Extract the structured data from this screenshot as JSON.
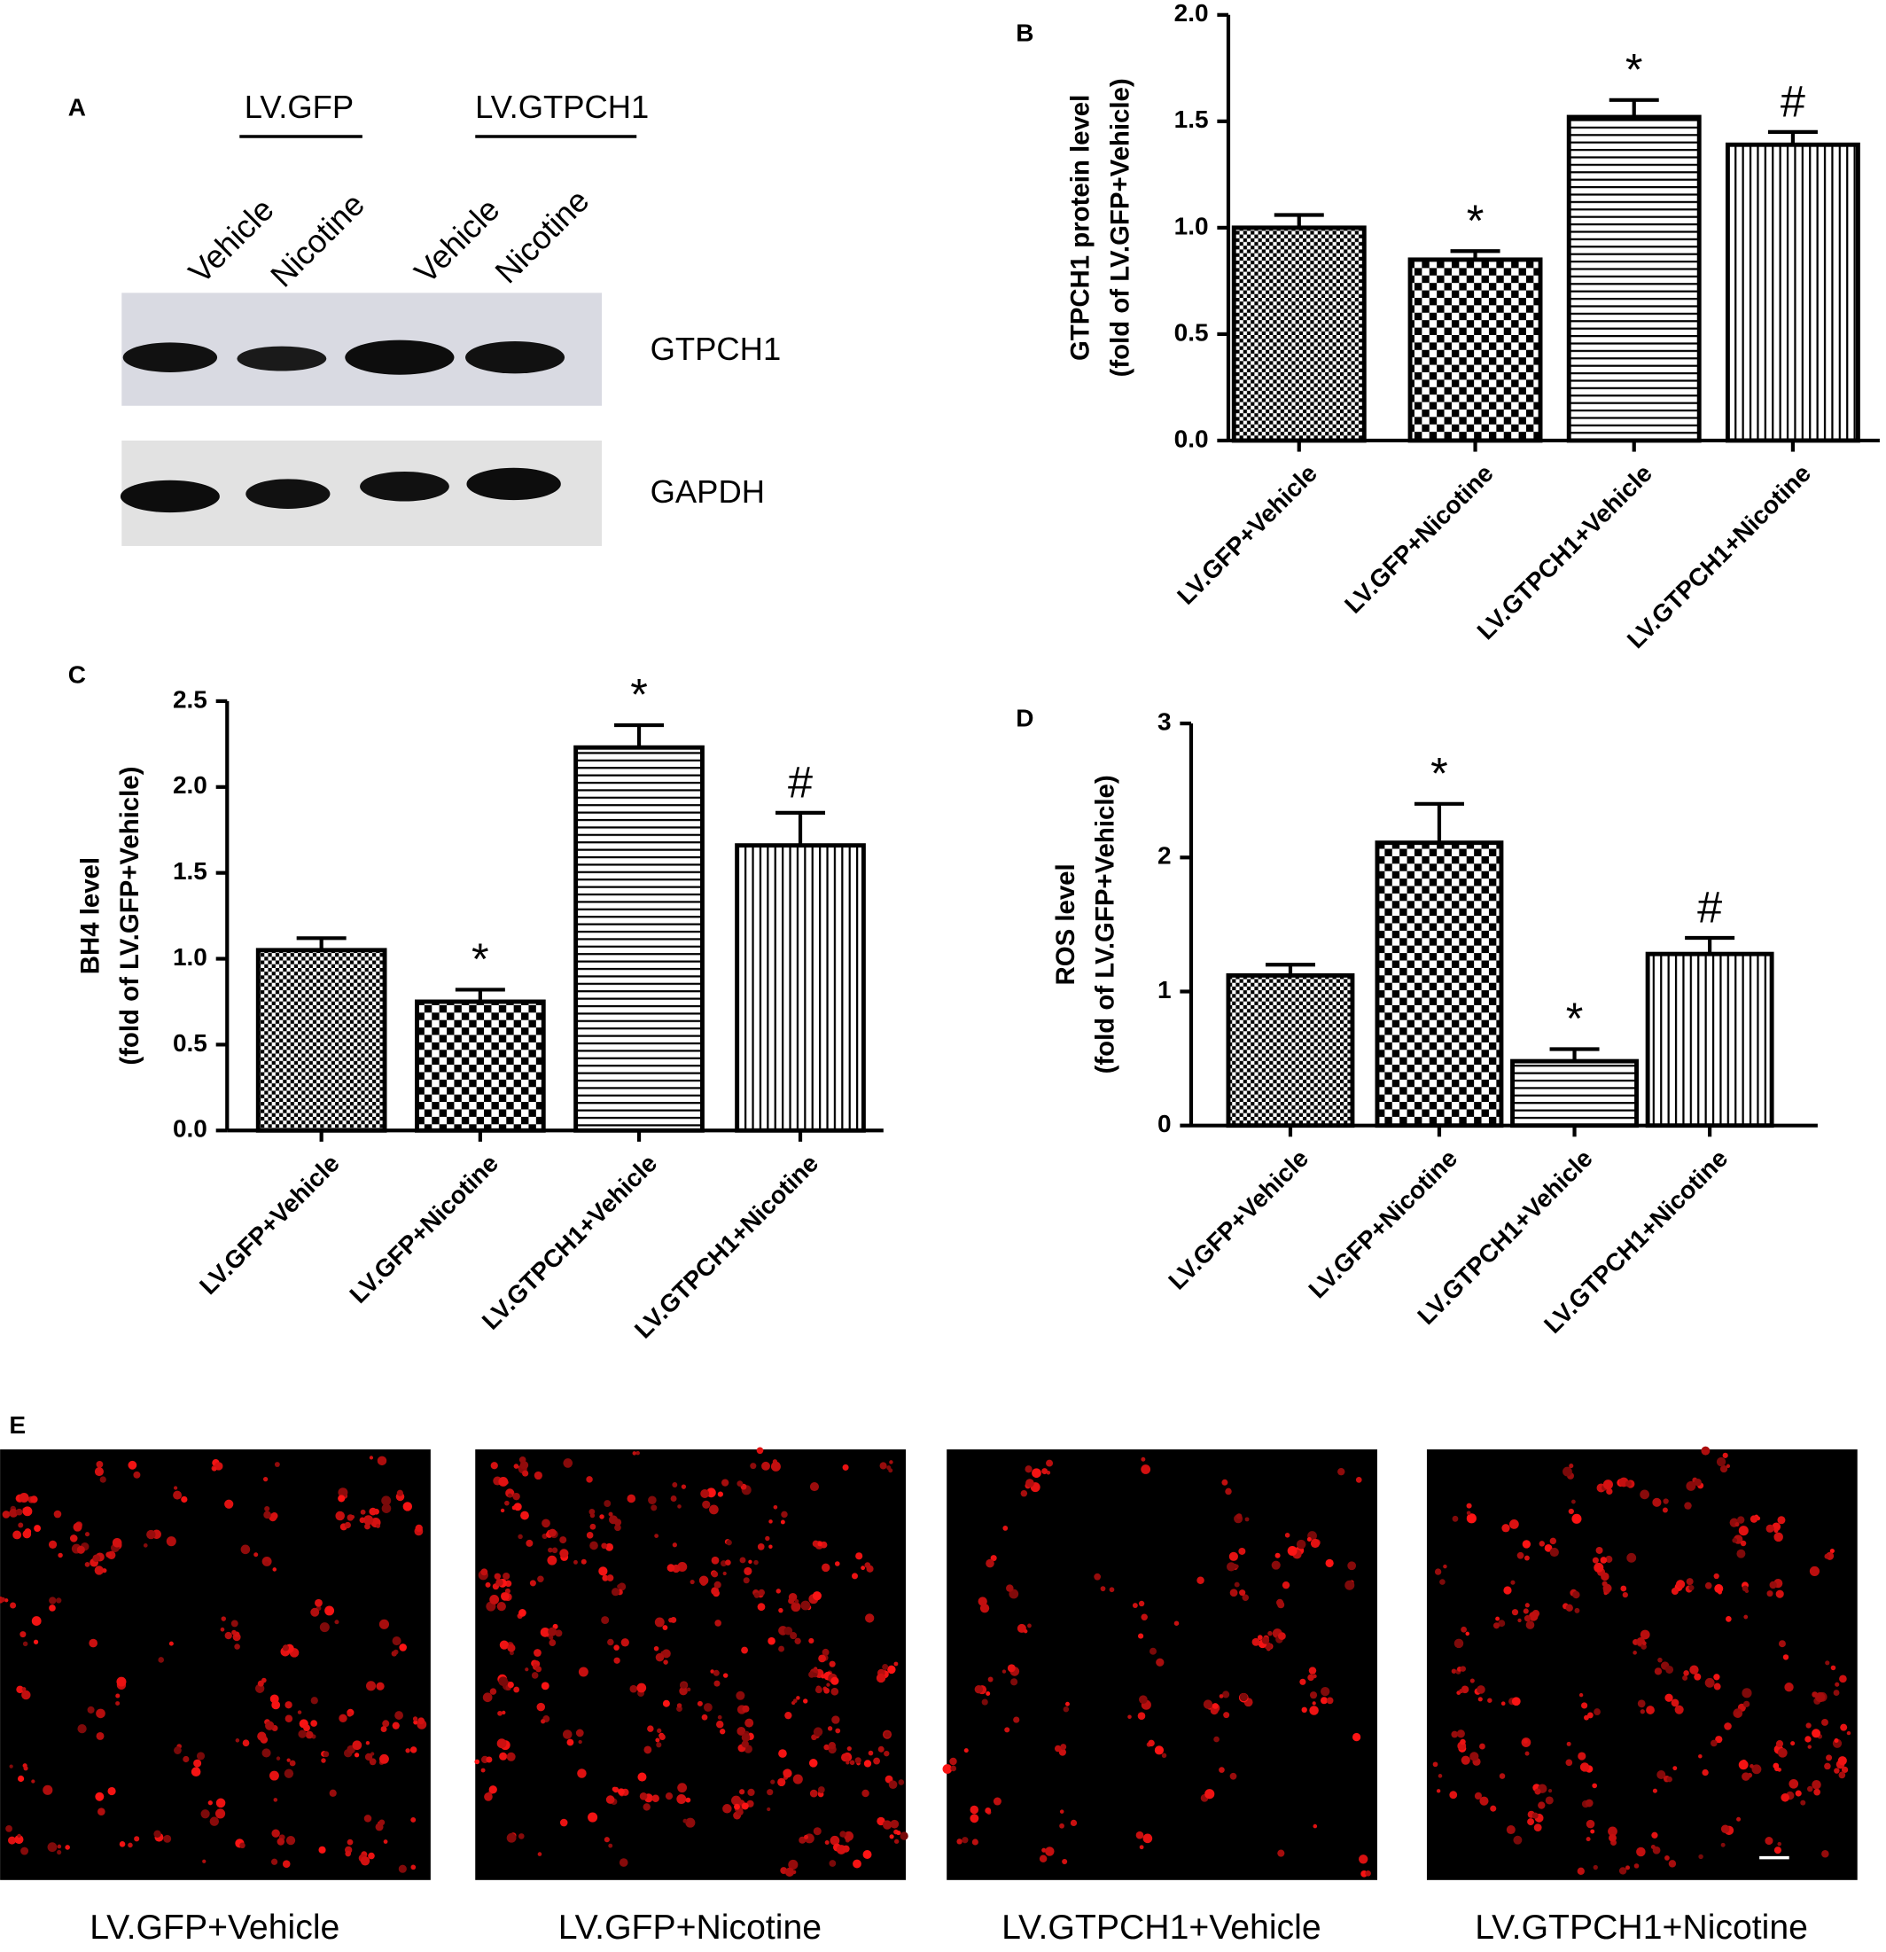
{
  "panel_a": {
    "label": "A",
    "groups": [
      "LV.GFP",
      "LV.GTPCH1"
    ],
    "lanes": [
      "Vehicle",
      "Nicotine",
      "Vehicle",
      "Nicotine"
    ],
    "bands": [
      "GTPCH1",
      "GAPDH"
    ]
  },
  "chart_data": [
    {
      "type": "bar",
      "panel_label": "B",
      "ylabel": [
        "GTPCH1 protein level",
        "(fold of LV.GFP+Vehicle)"
      ],
      "categories": [
        "LV.GFP+Vehicle",
        "LV.GFP+Nicotine",
        "LV.GTPCH1+Vehicle",
        "LV.GTPCH1+Nicotine"
      ],
      "values": [
        1.0,
        0.85,
        1.52,
        1.39
      ],
      "errors": [
        0.06,
        0.04,
        0.08,
        0.06
      ],
      "annotations": [
        null,
        "*",
        "*",
        "#"
      ],
      "patterns": [
        "fine-check",
        "check",
        "horizontal",
        "vertical"
      ],
      "color": "#000000",
      "ylim": [
        0,
        2
      ],
      "yticks": [
        {
          "value": 0,
          "label": "0.0"
        },
        0.5,
        {
          "value": 1,
          "label": "1.0"
        },
        1.5,
        {
          "value": 2,
          "label": "2.0"
        }
      ]
    },
    {
      "type": "bar",
      "panel_label": "C",
      "ylabel": [
        "BH4 level",
        "(fold of LV.GFP+Vehicle)"
      ],
      "categories": [
        "LV.GFP+Vehicle",
        "LV.GFP+Nicotine",
        "LV.GTPCH1+Vehicle",
        "LV.GTPCH1+Nicotine"
      ],
      "values": [
        1.05,
        0.75,
        2.23,
        1.66
      ],
      "errors": [
        0.07,
        0.07,
        0.13,
        0.19
      ],
      "annotations": [
        null,
        "*",
        "*",
        "#"
      ],
      "patterns": [
        "fine-check",
        "check",
        "horizontal",
        "vertical"
      ],
      "color": "#000000",
      "ylim": [
        0,
        2.5
      ],
      "yticks": [
        {
          "value": 0,
          "label": "0.0"
        },
        0.5,
        {
          "value": 1,
          "label": "1.0"
        },
        1.5,
        {
          "value": 2,
          "label": "2.0"
        },
        2.5
      ]
    },
    {
      "type": "bar",
      "panel_label": "D",
      "ylabel": [
        "ROS level",
        "(fold of LV.GFP+Vehicle)"
      ],
      "categories": [
        "LV.GFP+Vehicle",
        "LV.GFP+Nicotine",
        "LV.GTPCH1+Vehicle",
        "LV.GTPCH1+Nicotine"
      ],
      "values": [
        1.12,
        2.11,
        0.48,
        1.28
      ],
      "errors": [
        0.08,
        0.29,
        0.09,
        0.12
      ],
      "annotations": [
        null,
        "*",
        "*",
        "#"
      ],
      "patterns": [
        "fine-check",
        "check",
        "horizontal",
        "vertical"
      ],
      "color": "#000000",
      "ylim": [
        0,
        3
      ],
      "yticks": [
        0,
        1,
        2,
        3
      ]
    }
  ],
  "panel_e": {
    "label": "E",
    "captions": [
      "LV.GFP+Vehicle",
      "LV.GFP+Nicotine",
      "LV.GTPCH1+Vehicle",
      "LV.GTPCH1+Nicotine"
    ]
  }
}
